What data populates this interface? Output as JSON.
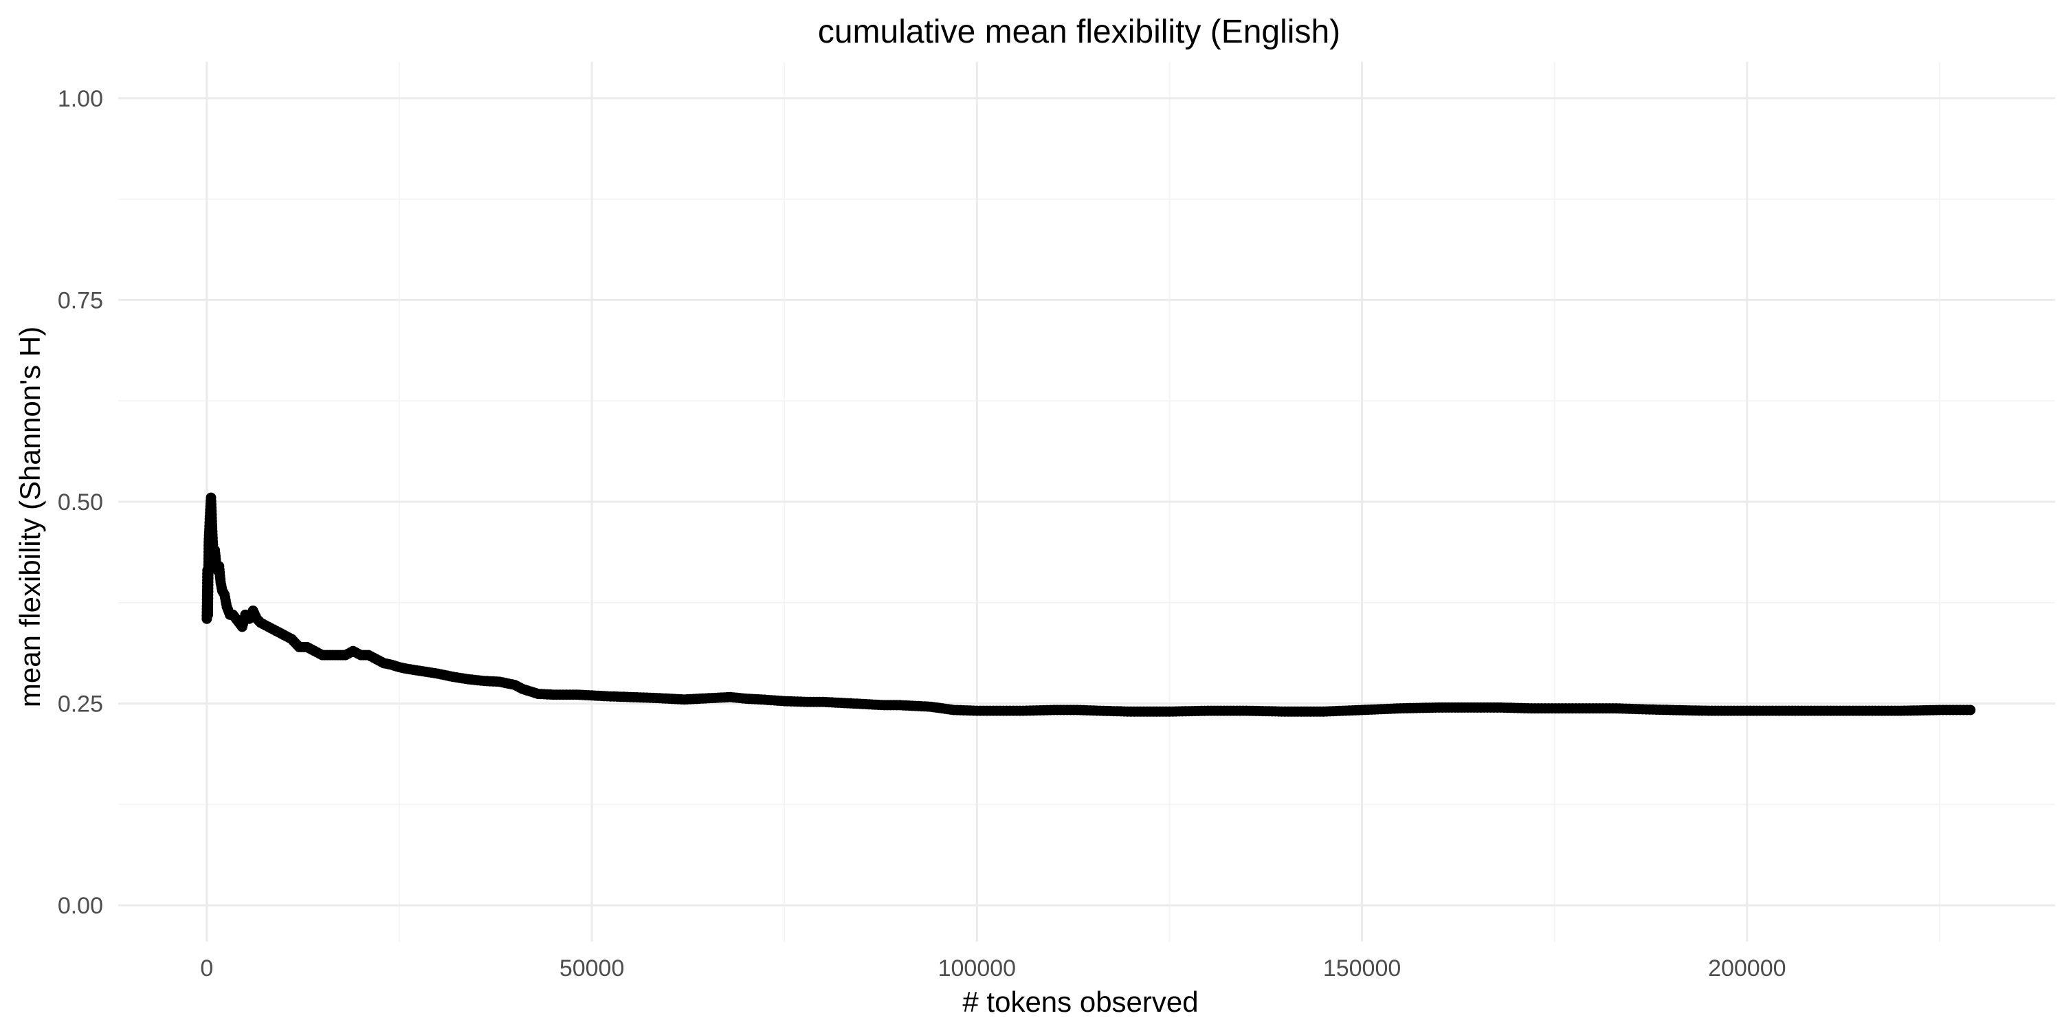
{
  "chart_data": {
    "type": "scatter",
    "title": "cumulative mean flexibility (English)",
    "xlabel": "# tokens observed",
    "ylabel": "mean flexibility (Shannon's H)",
    "xlim": [
      -11500,
      240000
    ],
    "ylim": [
      -0.045,
      1.045
    ],
    "x_ticks": [
      0,
      50000,
      100000,
      150000,
      200000
    ],
    "y_ticks": [
      0.0,
      0.25,
      0.5,
      0.75,
      1.0
    ],
    "x_tick_labels": [
      "0",
      "50000",
      "100000",
      "150000",
      "200000"
    ],
    "y_tick_labels": [
      "0.00",
      "0.25",
      "0.50",
      "0.75",
      "1.00"
    ],
    "grid": true,
    "legend": "none",
    "point_color": "#000000",
    "series": [
      {
        "x": [
          0,
          80,
          150,
          250,
          350,
          450,
          550,
          650,
          750,
          900,
          1050,
          1200,
          1400,
          1600,
          1800,
          2000,
          2300,
          2600,
          3000,
          3400,
          3800,
          4200,
          4600,
          5000,
          5500,
          6000,
          6500,
          7000,
          8000,
          9000,
          10000,
          11000,
          12000,
          13000,
          14000,
          15000,
          16000,
          17000,
          18000,
          19000,
          20000,
          21000,
          22000,
          23000,
          24000,
          25000,
          26000,
          28000,
          30000,
          32000,
          34000,
          36000,
          38000,
          40000,
          41000,
          42000,
          43000,
          45000,
          48000,
          50000,
          52000,
          55000,
          58000,
          60000,
          62000,
          64000,
          66000,
          68000,
          70000,
          72000,
          75000,
          78000,
          80000,
          82000,
          84000,
          86000,
          88000,
          90000,
          92000,
          94000,
          95500,
          97000,
          100000,
          103000,
          106000,
          110000,
          113000,
          116000,
          120000,
          125000,
          130000,
          135000,
          140000,
          145000,
          150000,
          155000,
          160000,
          165000,
          168000,
          172000,
          176000,
          180000,
          183000,
          186000,
          190000,
          195000,
          200000,
          205000,
          210000,
          215000,
          220000,
          225000,
          229000
        ],
        "y": [
          0.355,
          0.415,
          0.36,
          0.45,
          0.47,
          0.49,
          0.505,
          0.48,
          0.455,
          0.43,
          0.44,
          0.425,
          0.415,
          0.42,
          0.4,
          0.39,
          0.385,
          0.37,
          0.36,
          0.36,
          0.355,
          0.35,
          0.345,
          0.36,
          0.355,
          0.365,
          0.355,
          0.35,
          0.345,
          0.34,
          0.335,
          0.33,
          0.32,
          0.32,
          0.315,
          0.31,
          0.31,
          0.31,
          0.31,
          0.315,
          0.31,
          0.31,
          0.305,
          0.3,
          0.298,
          0.295,
          0.293,
          0.29,
          0.287,
          0.283,
          0.28,
          0.278,
          0.277,
          0.273,
          0.268,
          0.265,
          0.262,
          0.261,
          0.261,
          0.26,
          0.259,
          0.258,
          0.257,
          0.256,
          0.255,
          0.256,
          0.257,
          0.258,
          0.256,
          0.255,
          0.253,
          0.252,
          0.252,
          0.251,
          0.25,
          0.249,
          0.248,
          0.248,
          0.247,
          0.246,
          0.244,
          0.242,
          0.241,
          0.241,
          0.241,
          0.242,
          0.242,
          0.241,
          0.24,
          0.24,
          0.241,
          0.241,
          0.24,
          0.24,
          0.242,
          0.244,
          0.245,
          0.245,
          0.245,
          0.244,
          0.244,
          0.244,
          0.244,
          0.243,
          0.242,
          0.241,
          0.241,
          0.241,
          0.241,
          0.241,
          0.241,
          0.242,
          0.242
        ]
      }
    ]
  }
}
